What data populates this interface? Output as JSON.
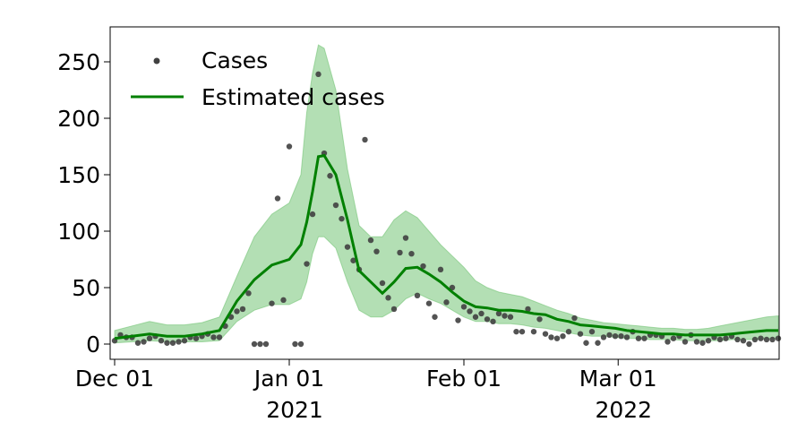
{
  "chart_data": {
    "type": "line",
    "title": "",
    "xlabel": "",
    "ylabel": "",
    "x_range": [
      "2020-12-01",
      "2022-04-02"
    ],
    "ylim": [
      -12,
      280
    ],
    "y_ticks": [
      0,
      50,
      100,
      150,
      200,
      250
    ],
    "x_ticks": [
      {
        "date": "2020-12-01",
        "label": "Dec 01"
      },
      {
        "date": "2021-01-01",
        "label": "Jan 01"
      },
      {
        "date": "2021-02-01",
        "label": "Feb 01"
      },
      {
        "date": "2022-03-01",
        "label": "Mar 01"
      }
    ],
    "year_labels": [
      {
        "date": "2021-01-01",
        "label": "2021"
      },
      {
        "date": "2022-03-01",
        "label": "2022"
      }
    ],
    "x_axis_note": "axis is drawn as continuous days Dec 01 2020 → Apr 2022 compressed as in the original figure",
    "grid": false,
    "legend_position": "top-left",
    "legend": [
      {
        "label": "Cases",
        "kind": "dot"
      },
      {
        "label": "Estimated cases",
        "kind": "line"
      }
    ],
    "colors": {
      "cases": "#404040",
      "estimate": "#008000",
      "band": "#74c476"
    },
    "cases": {
      "day": [
        0,
        1,
        2,
        3,
        4,
        5,
        6,
        7,
        8,
        9,
        10,
        11,
        12,
        13,
        14,
        15,
        16,
        17,
        18,
        19,
        20,
        21,
        22,
        23,
        24,
        25,
        26,
        27,
        28,
        29,
        30,
        31,
        32,
        33,
        34,
        35,
        36,
        37,
        38,
        39,
        40,
        41,
        42,
        43,
        44,
        45,
        46,
        47,
        48,
        49,
        50,
        51,
        52,
        53,
        54,
        55,
        56,
        57,
        58,
        59,
        60,
        61,
        62,
        63,
        64,
        65,
        66,
        67,
        68,
        69,
        70,
        71,
        72,
        73,
        74,
        75,
        76,
        77,
        78,
        79,
        80,
        81,
        82,
        83,
        84,
        85,
        86,
        87,
        88,
        89,
        90,
        91,
        92,
        93,
        94,
        95,
        96,
        97,
        98,
        99,
        100,
        101,
        102,
        103,
        104,
        105,
        106,
        107,
        108,
        109,
        110,
        111,
        112,
        113,
        114
      ],
      "value": [
        3,
        8,
        6,
        6,
        1,
        2,
        5,
        7,
        3,
        1,
        1,
        2,
        3,
        6,
        5,
        7,
        9,
        6,
        6,
        16,
        24,
        29,
        31,
        45,
        0,
        0,
        0,
        36,
        129,
        39,
        175,
        0,
        0,
        71,
        115,
        239,
        169,
        149,
        123,
        111,
        86,
        74,
        66,
        181,
        92,
        82,
        54,
        41,
        31,
        81,
        94,
        80,
        43,
        69,
        36,
        24,
        66,
        37,
        50,
        21,
        33,
        29,
        24,
        27,
        22,
        20,
        27,
        25,
        24,
        11,
        11,
        31,
        11,
        22,
        9,
        6,
        5,
        7,
        11,
        23,
        9,
        1,
        11,
        1,
        6,
        8,
        7,
        7,
        6,
        11,
        5,
        5,
        8,
        8,
        7,
        2,
        5,
        7,
        2,
        8,
        2,
        1,
        3,
        6,
        4,
        5,
        7,
        4,
        3,
        0,
        4,
        5,
        4,
        4,
        5
      ],
      "note": "daily reported cases; values read from the scatter points"
    },
    "estimate": {
      "day": [
        0,
        3,
        6,
        9,
        12,
        15,
        18,
        21,
        24,
        27,
        30,
        32,
        33,
        34,
        35,
        36,
        38,
        40,
        42,
        44,
        46,
        48,
        50,
        52,
        54,
        56,
        58,
        60,
        62,
        64,
        66,
        68,
        70,
        72,
        74,
        76,
        78,
        80,
        82,
        84,
        86,
        88,
        90,
        92,
        94,
        96,
        98,
        100,
        102,
        104,
        106,
        108,
        110,
        112,
        114
      ],
      "median": [
        5,
        7,
        9,
        7,
        7,
        9,
        12,
        38,
        57,
        70,
        75,
        88,
        108,
        135,
        166,
        167,
        150,
        110,
        65,
        55,
        45,
        55,
        67,
        68,
        62,
        55,
        46,
        38,
        33,
        32,
        30,
        30,
        29,
        27,
        26,
        22,
        20,
        17,
        16,
        15,
        14,
        12,
        11,
        10,
        9,
        9,
        8,
        8,
        8,
        8,
        9,
        10,
        11,
        12,
        12
      ],
      "lower": [
        1,
        2,
        3,
        2,
        2,
        2,
        3,
        20,
        30,
        35,
        35,
        40,
        55,
        80,
        95,
        95,
        85,
        55,
        30,
        24,
        24,
        30,
        40,
        45,
        40,
        36,
        30,
        24,
        20,
        20,
        18,
        18,
        17,
        15,
        14,
        12,
        10,
        8,
        7,
        7,
        6,
        5,
        5,
        4,
        4,
        4,
        3,
        3,
        3,
        3,
        4,
        4,
        4,
        5,
        5
      ],
      "upper": [
        12,
        16,
        20,
        17,
        17,
        19,
        24,
        60,
        95,
        115,
        125,
        150,
        205,
        240,
        265,
        262,
        225,
        155,
        105,
        95,
        95,
        110,
        118,
        112,
        100,
        88,
        78,
        68,
        56,
        50,
        46,
        44,
        42,
        38,
        34,
        30,
        27,
        23,
        21,
        19,
        18,
        17,
        16,
        15,
        14,
        14,
        13,
        13,
        14,
        16,
        18,
        20,
        22,
        24,
        25
      ]
    }
  }
}
